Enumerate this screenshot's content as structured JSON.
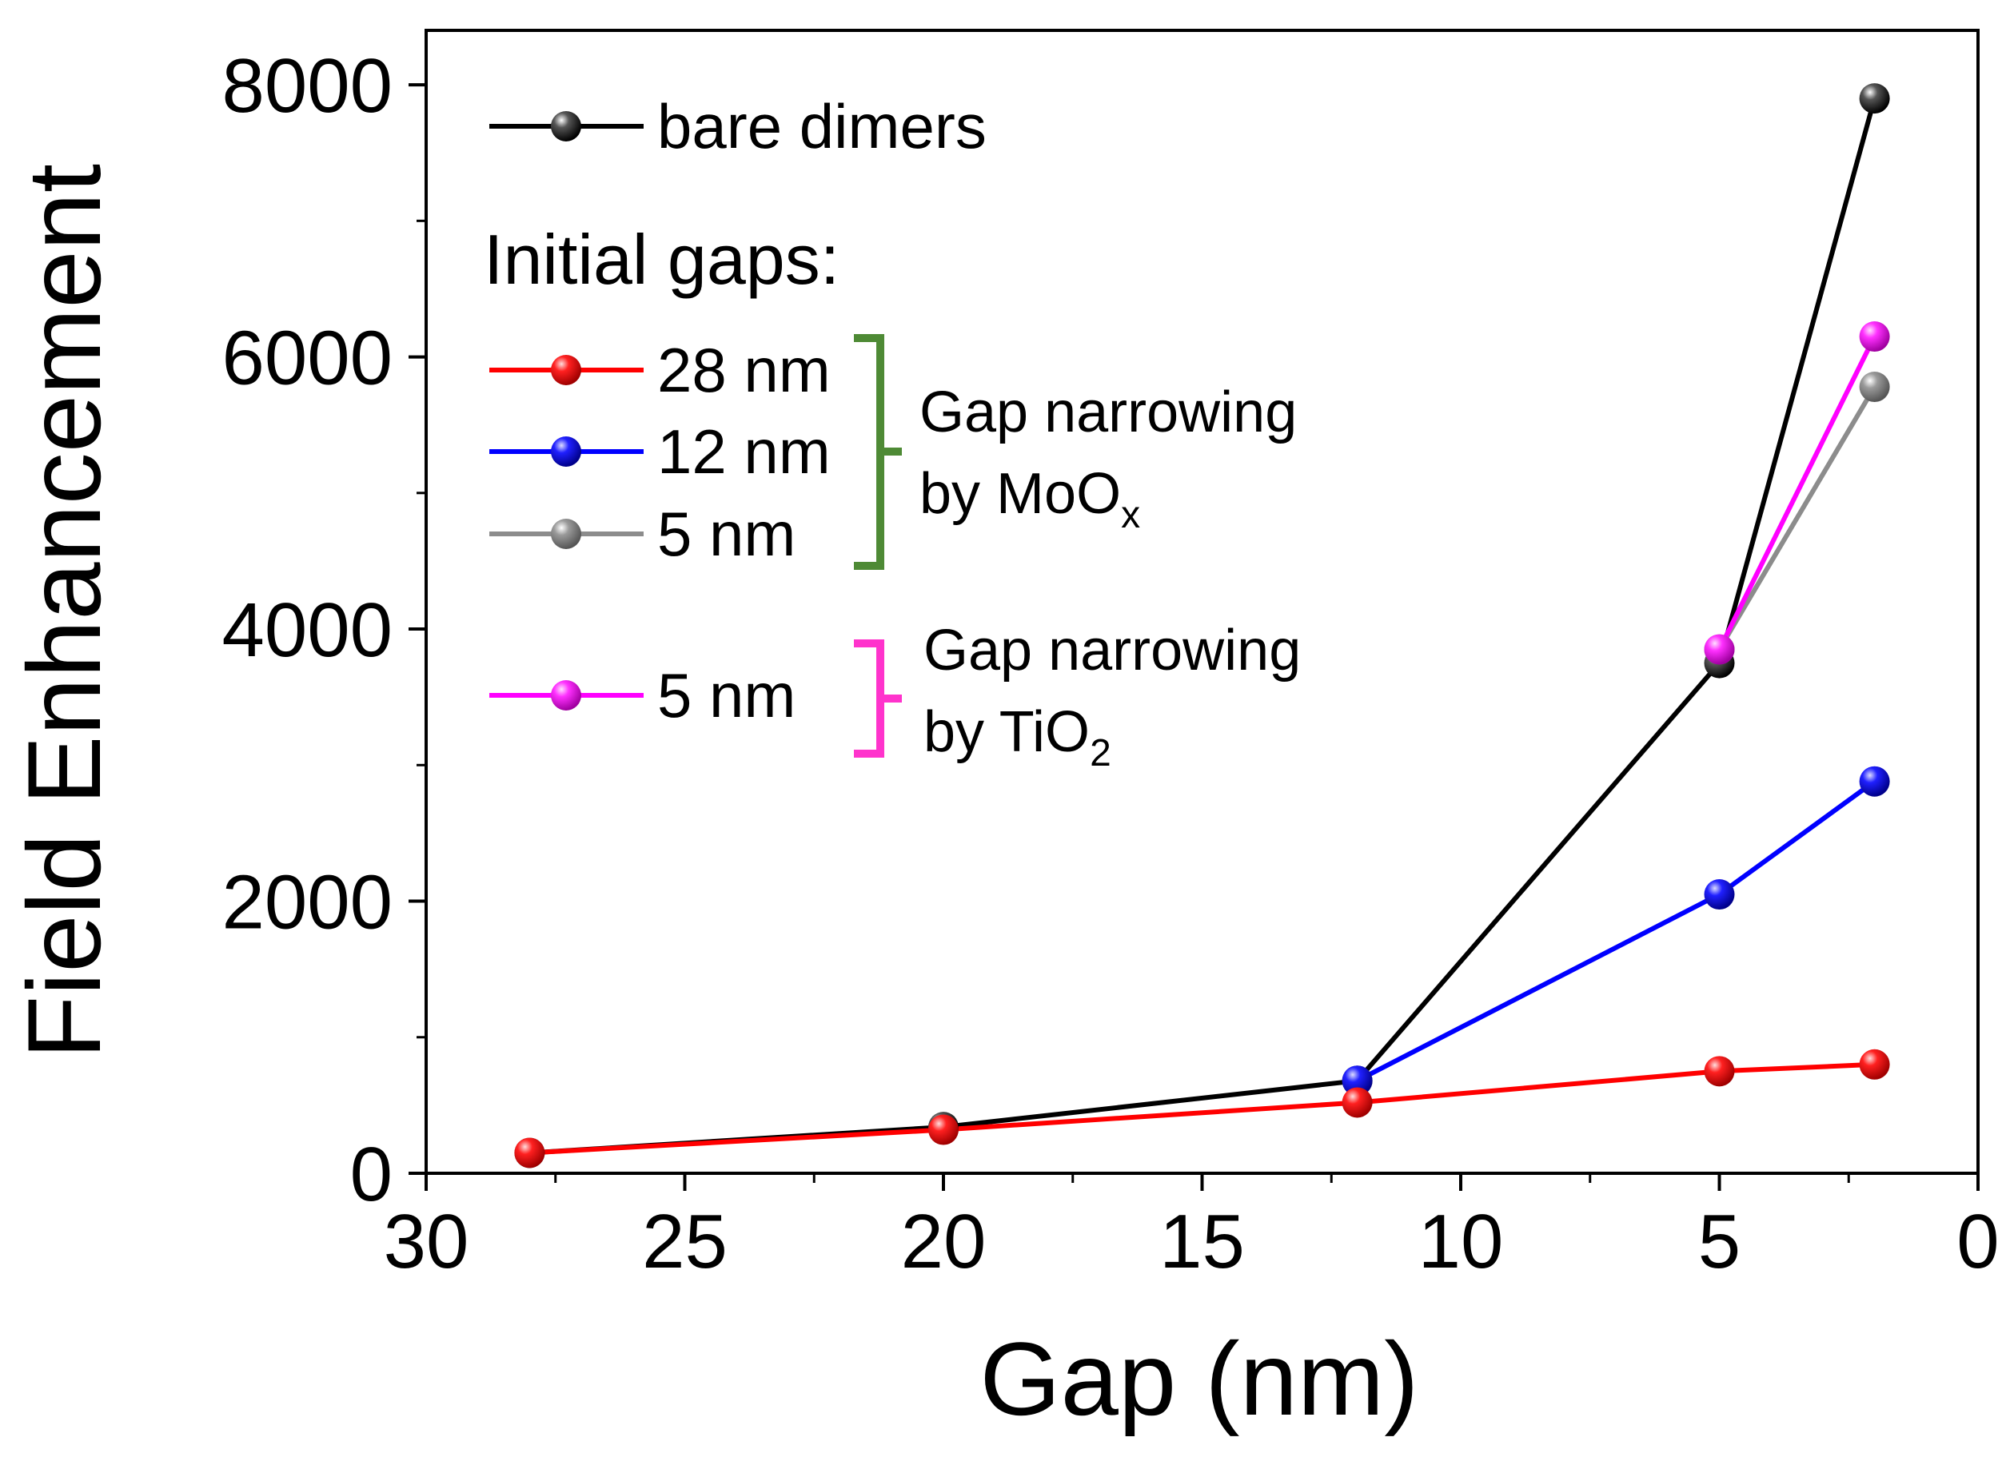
{
  "chart_data": {
    "type": "line",
    "xlabel": "Gap (nm)",
    "ylabel": "Field Enhancement",
    "xlim": [
      30,
      0
    ],
    "ylim": [
      0,
      8400
    ],
    "x_ticks": [
      30,
      25,
      20,
      15,
      10,
      5,
      0
    ],
    "x_tick_labels": [
      "30",
      "25",
      "20",
      "15",
      "10",
      "5",
      "0"
    ],
    "y_ticks": [
      0,
      2000,
      4000,
      6000,
      8000
    ],
    "y_tick_labels": [
      "0",
      "2000",
      "4000",
      "6000",
      "8000"
    ],
    "grid": false,
    "legend_heading": "Initial gaps:",
    "series": [
      {
        "name": "bare dimers",
        "color": "#000000",
        "x": [
          28,
          20,
          12,
          5,
          2
        ],
        "y": [
          150,
          340,
          680,
          3750,
          7900
        ]
      },
      {
        "name": "28 nm",
        "color": "#ff0000",
        "x": [
          28,
          20,
          12,
          5,
          2
        ],
        "y": [
          150,
          320,
          520,
          750,
          800
        ]
      },
      {
        "name": "12 nm",
        "color": "#0000ff",
        "x": [
          12,
          5,
          2
        ],
        "y": [
          680,
          2050,
          2880
        ]
      },
      {
        "name": "5 nm",
        "color": "#8c8c8c",
        "x": [
          5,
          2
        ],
        "y": [
          3850,
          5780
        ]
      },
      {
        "name": "5 nm",
        "color": "#ff00ff",
        "x": [
          5,
          2
        ],
        "y": [
          3850,
          6150
        ]
      }
    ],
    "annotations": [
      {
        "line1": "Gap narrowing",
        "line2_main": "by MoO",
        "line2_sub": "x",
        "color": "#4e8a35"
      },
      {
        "line1": "Gap narrowing",
        "line2_main": "by TiO",
        "line2_sub": "2",
        "color": "#ff33cc"
      }
    ]
  }
}
